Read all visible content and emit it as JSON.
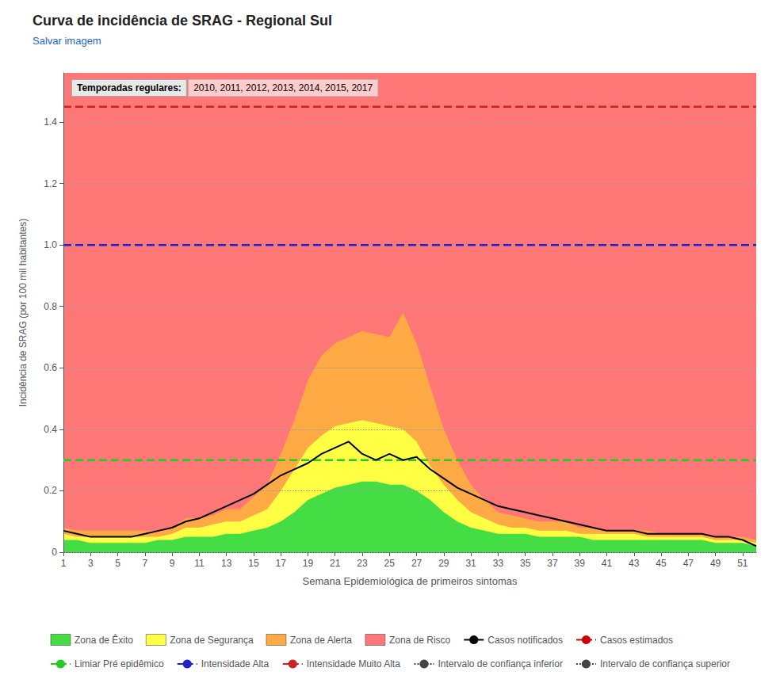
{
  "chart_data": {
    "type": "line",
    "title": "Curva de incidência de SRAG - Regional Sul",
    "subtitle": "Salvar imagem",
    "annotations": [
      "Temporadas regulares:",
      "2010, 2011, 2012, 2013, 2014, 2015, 2017"
    ],
    "x_label": "Semana Epidemiológica de primeiros sintomas",
    "y_label": "Incidência de SRAG (por 100 mil habitantes)",
    "xlim": [
      1,
      52
    ],
    "ylim": [
      0,
      1.56
    ],
    "xticks": [
      1,
      3,
      5,
      7,
      9,
      11,
      13,
      15,
      17,
      19,
      21,
      23,
      25,
      27,
      29,
      31,
      33,
      35,
      37,
      39,
      41,
      43,
      45,
      47,
      49,
      51
    ],
    "yticks": [
      0,
      0.2,
      0.4,
      0.6,
      0.8,
      {
        "value": 1.0,
        "label": "1.0"
      },
      1.2,
      1.4
    ],
    "grid": true,
    "legend": "bottom",
    "x": [
      1,
      2,
      3,
      4,
      5,
      6,
      7,
      8,
      9,
      10,
      11,
      12,
      13,
      14,
      15,
      16,
      17,
      18,
      19,
      20,
      21,
      22,
      23,
      24,
      25,
      26,
      27,
      28,
      29,
      30,
      31,
      32,
      33,
      34,
      35,
      36,
      37,
      38,
      39,
      40,
      41,
      42,
      43,
      44,
      45,
      46,
      47,
      48,
      49,
      50,
      51,
      52
    ],
    "series": [
      {
        "name": "Zona de Êxito",
        "type": "area",
        "color": "#44dd44",
        "values": [
          0.04,
          0.04,
          0.03,
          0.03,
          0.03,
          0.03,
          0.03,
          0.04,
          0.04,
          0.05,
          0.05,
          0.05,
          0.06,
          0.06,
          0.07,
          0.08,
          0.1,
          0.13,
          0.17,
          0.19,
          0.21,
          0.22,
          0.23,
          0.23,
          0.22,
          0.22,
          0.2,
          0.17,
          0.13,
          0.1,
          0.08,
          0.07,
          0.06,
          0.06,
          0.06,
          0.05,
          0.05,
          0.05,
          0.05,
          0.04,
          0.04,
          0.04,
          0.04,
          0.04,
          0.04,
          0.04,
          0.04,
          0.04,
          0.03,
          0.03,
          0.03,
          0.02
        ]
      },
      {
        "name": "Zona de Segurança",
        "type": "area",
        "color": "#ffff44",
        "values": [
          0.06,
          0.05,
          0.05,
          0.05,
          0.05,
          0.05,
          0.05,
          0.05,
          0.06,
          0.08,
          0.08,
          0.09,
          0.1,
          0.1,
          0.12,
          0.14,
          0.2,
          0.27,
          0.34,
          0.38,
          0.41,
          0.42,
          0.43,
          0.42,
          0.41,
          0.4,
          0.36,
          0.28,
          0.22,
          0.17,
          0.13,
          0.11,
          0.09,
          0.08,
          0.08,
          0.07,
          0.07,
          0.07,
          0.06,
          0.06,
          0.06,
          0.06,
          0.06,
          0.05,
          0.05,
          0.05,
          0.05,
          0.05,
          0.04,
          0.04,
          0.04,
          0.03
        ]
      },
      {
        "name": "Zona de Alerta",
        "type": "area",
        "color": "#ffaa44",
        "values": [
          0.08,
          0.07,
          0.07,
          0.07,
          0.07,
          0.07,
          0.07,
          0.07,
          0.08,
          0.11,
          0.11,
          0.12,
          0.14,
          0.14,
          0.18,
          0.22,
          0.32,
          0.43,
          0.56,
          0.64,
          0.68,
          0.7,
          0.72,
          0.71,
          0.7,
          0.78,
          0.68,
          0.54,
          0.4,
          0.3,
          0.22,
          0.17,
          0.13,
          0.12,
          0.11,
          0.1,
          0.1,
          0.1,
          0.08,
          0.08,
          0.07,
          0.07,
          0.07,
          0.07,
          0.06,
          0.06,
          0.06,
          0.06,
          0.05,
          0.05,
          0.05,
          0.04
        ]
      },
      {
        "name": "Zona de Risco",
        "type": "area",
        "color": "#ff7777",
        "values": [
          1.56,
          1.56,
          1.56,
          1.56,
          1.56,
          1.56,
          1.56,
          1.56,
          1.56,
          1.56,
          1.56,
          1.56,
          1.56,
          1.56,
          1.56,
          1.56,
          1.56,
          1.56,
          1.56,
          1.56,
          1.56,
          1.56,
          1.56,
          1.56,
          1.56,
          1.56,
          1.56,
          1.56,
          1.56,
          1.56,
          1.56,
          1.56,
          1.56,
          1.56,
          1.56,
          1.56,
          1.56,
          1.56,
          1.56,
          1.56,
          1.56,
          1.56,
          1.56,
          1.56,
          1.56,
          1.56,
          1.56,
          1.56,
          1.56,
          1.56,
          1.56,
          1.56
        ]
      },
      {
        "name": "Casos notificados",
        "type": "line",
        "color": "#000000",
        "line_style": "solid",
        "values": [
          0.07,
          0.06,
          0.05,
          0.05,
          0.05,
          0.05,
          0.06,
          0.07,
          0.08,
          0.1,
          0.11,
          0.13,
          0.15,
          0.17,
          0.19,
          0.22,
          0.25,
          0.27,
          0.29,
          0.32,
          0.34,
          0.36,
          0.32,
          0.3,
          0.32,
          0.3,
          0.31,
          0.27,
          0.24,
          0.21,
          0.19,
          0.17,
          0.15,
          0.14,
          0.13,
          0.12,
          0.11,
          0.1,
          0.09,
          0.08,
          0.07,
          0.07,
          0.07,
          0.06,
          0.06,
          0.06,
          0.06,
          0.06,
          0.05,
          0.05,
          0.04,
          0.02
        ]
      },
      {
        "name": "Casos estimados",
        "type": "line",
        "color": "#cc0000",
        "line_style": "dashed",
        "values": [
          null,
          null,
          null,
          null,
          null,
          null,
          null,
          null,
          null,
          null,
          null,
          null,
          null,
          null,
          null,
          null,
          null,
          null,
          null,
          null,
          null,
          null,
          null,
          null,
          null,
          null,
          null,
          null,
          null,
          null,
          null,
          null,
          null,
          null,
          null,
          null,
          null,
          null,
          null,
          null,
          null,
          null,
          null,
          null,
          null,
          null,
          null,
          null,
          null,
          null,
          null,
          null
        ]
      },
      {
        "name": "Limiar Pré epidêmico",
        "type": "hline",
        "color": "#22cc22",
        "line_style": "dashed",
        "value": 0.3
      },
      {
        "name": "Intensidade Alta",
        "type": "hline",
        "color": "#2222cc",
        "line_style": "dashed",
        "value": 1.0
      },
      {
        "name": "Intensidade Muito Alta",
        "type": "hline",
        "color": "#cc2222",
        "line_style": "dashed",
        "value": 1.45
      },
      {
        "name": "Intervalo de confiança inferior",
        "type": "line",
        "color": "#444444",
        "line_style": "dotted",
        "values": [
          null,
          null,
          null,
          null,
          null,
          null,
          null,
          null,
          null,
          null,
          null,
          null,
          null,
          null,
          null,
          null,
          null,
          null,
          null,
          null,
          null,
          null,
          null,
          null,
          null,
          null,
          null,
          null,
          null,
          null,
          null,
          null,
          null,
          null,
          null,
          null,
          null,
          null,
          null,
          null,
          null,
          null,
          null,
          null,
          null,
          null,
          null,
          null,
          null,
          null,
          null,
          null
        ]
      },
      {
        "name": "Intervalo de confiança superior",
        "type": "line",
        "color": "#444444",
        "line_style": "dotted",
        "values": [
          null,
          null,
          null,
          null,
          null,
          null,
          null,
          null,
          null,
          null,
          null,
          null,
          null,
          null,
          null,
          null,
          null,
          null,
          null,
          null,
          null,
          null,
          null,
          null,
          null,
          null,
          null,
          null,
          null,
          null,
          null,
          null,
          null,
          null,
          null,
          null,
          null,
          null,
          null,
          null,
          null,
          null,
          null,
          null,
          null,
          null,
          null,
          null,
          null,
          null,
          null,
          null
        ]
      }
    ]
  }
}
